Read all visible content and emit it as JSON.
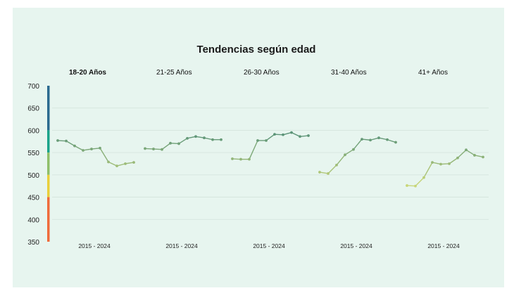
{
  "chart_data": {
    "type": "line",
    "title": "Tendencias según edad",
    "ylim": [
      350,
      700
    ],
    "yticks": [
      700,
      650,
      600,
      550,
      500,
      450,
      400,
      350
    ],
    "grid": true,
    "x_label": "2015 - 2024",
    "x": [
      2015,
      2016,
      2017,
      2018,
      2019,
      2020,
      2021,
      2022,
      2023,
      2024
    ],
    "color_scale": [
      {
        "from": 600,
        "to": 700,
        "color": "#2b6a8f"
      },
      {
        "from": 550,
        "to": 600,
        "color": "#1aa38a"
      },
      {
        "from": 500,
        "to": 550,
        "color": "#8fbf6a"
      },
      {
        "from": 450,
        "to": 500,
        "color": "#e9cf3b"
      },
      {
        "from": 350,
        "to": 450,
        "color": "#ef6b3b"
      }
    ],
    "panels": [
      {
        "label": "18-20 Años",
        "bold": true,
        "values": [
          577,
          576,
          565,
          555,
          558,
          560,
          529,
          520,
          525,
          528
        ]
      },
      {
        "label": "21-25 Años",
        "bold": false,
        "values": [
          559,
          558,
          557,
          571,
          570,
          582,
          586,
          583,
          579,
          579
        ]
      },
      {
        "label": "26-30 Años",
        "bold": false,
        "values": [
          536,
          535,
          535,
          577,
          577,
          591,
          590,
          595,
          586,
          588
        ]
      },
      {
        "label": "31-40 Años",
        "bold": false,
        "values": [
          506,
          503,
          522,
          545,
          557,
          580,
          578,
          583,
          579,
          573
        ]
      },
      {
        "label": "41+ Años",
        "bold": false,
        "values": [
          476,
          475,
          494,
          528,
          524,
          525,
          538,
          556,
          544,
          540
        ]
      }
    ]
  }
}
